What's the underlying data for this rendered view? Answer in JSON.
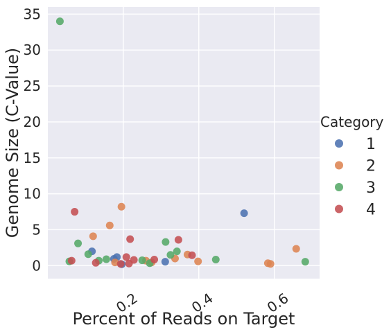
{
  "chart_data": {
    "type": "scatter",
    "xlabel": "Percent of Reads on Target",
    "ylabel": "Genome Size (C-Value)",
    "xlim": [
      0.0,
      0.72
    ],
    "ylim": [
      -1.8,
      36
    ],
    "xticks": [
      0.2,
      0.4,
      0.6
    ],
    "xtick_labels": [
      "0.2",
      "0.4",
      "0.6"
    ],
    "yticks": [
      0,
      5,
      10,
      15,
      20,
      25,
      30,
      35
    ],
    "ytick_labels": [
      "0",
      "5",
      "10",
      "15",
      "20",
      "25",
      "30",
      "35"
    ],
    "grid": true,
    "legend": {
      "title": "Category",
      "placement": "right"
    },
    "series": [
      {
        "name": "1",
        "color": "#4c72b0",
        "x": [
          0.117,
          0.175,
          0.183,
          0.196,
          0.311,
          0.52
        ],
        "y": [
          2.0,
          0.95,
          1.2,
          0.2,
          0.55,
          7.3
        ]
      },
      {
        "name": "2",
        "color": "#dd8452",
        "x": [
          0.12,
          0.164,
          0.178,
          0.195,
          0.26,
          0.275,
          0.337,
          0.37,
          0.398,
          0.583,
          0.59,
          0.658
        ],
        "y": [
          4.1,
          5.6,
          0.45,
          8.2,
          0.7,
          0.45,
          1.0,
          1.55,
          0.6,
          0.35,
          0.25,
          2.35
        ]
      },
      {
        "name": "3",
        "color": "#55a868",
        "x": [
          0.032,
          0.057,
          0.08,
          0.107,
          0.135,
          0.155,
          0.25,
          0.27,
          0.312,
          0.325,
          0.342,
          0.445,
          0.682
        ],
        "y": [
          34.0,
          0.6,
          3.1,
          1.6,
          0.7,
          0.9,
          0.75,
          0.35,
          3.3,
          1.5,
          2.0,
          0.85,
          0.55
        ]
      },
      {
        "name": "4",
        "color": "#c44e52",
        "x": [
          0.063,
          0.071,
          0.127,
          0.193,
          0.208,
          0.215,
          0.218,
          0.228,
          0.282,
          0.346,
          0.382
        ],
        "y": [
          0.7,
          7.5,
          0.4,
          0.25,
          1.2,
          0.3,
          3.7,
          0.8,
          0.85,
          3.6,
          1.45
        ]
      }
    ]
  }
}
